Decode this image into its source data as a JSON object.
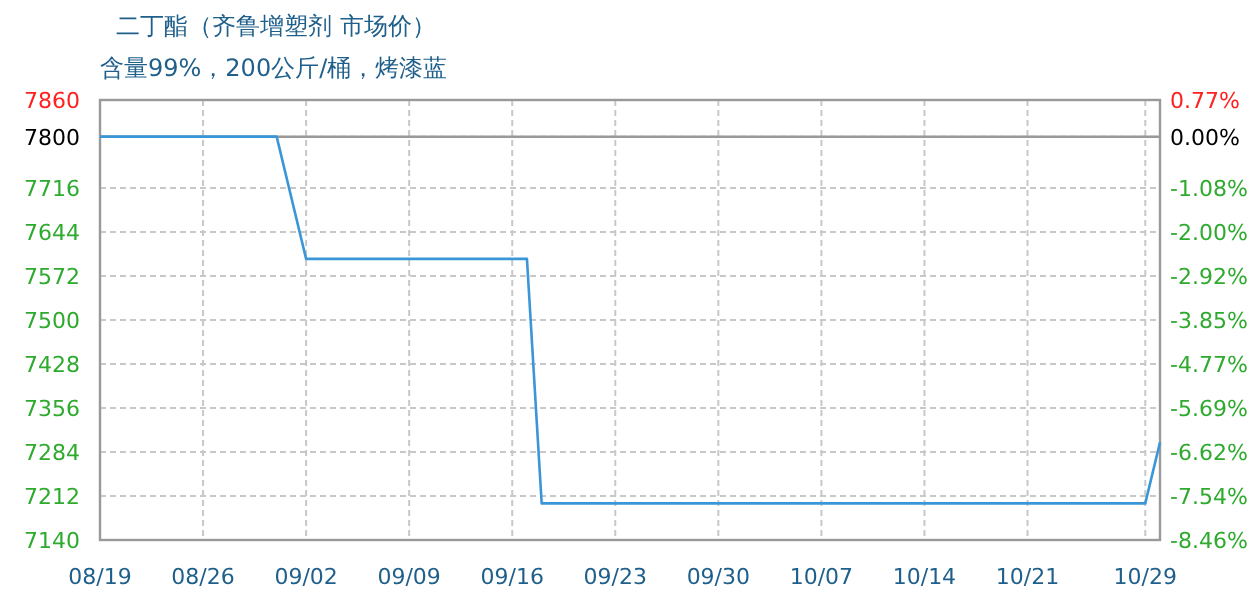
{
  "chart_data": {
    "type": "line",
    "title": "二丁酯（齐鲁增塑剂 市场价）",
    "subtitle": "含量99%，200公斤/桶，烤漆蓝",
    "x": [
      "--08-19",
      "--08-31",
      "--09-02",
      "--09-17",
      "--09-18",
      "--10-29",
      "--10-30"
    ],
    "series": [
      {
        "color": "#3a96d8",
        "values": [
          7800,
          7800,
          7600,
          7600,
          7200,
          7200,
          7300
        ]
      }
    ],
    "xlim": [
      "--08-19",
      "--10-30"
    ],
    "xticks": [
      {
        "value": "--08-19",
        "label": "08/19"
      },
      {
        "value": "--08-26",
        "label": "08/26"
      },
      {
        "value": "--09-02",
        "label": "09/02"
      },
      {
        "value": "--09-09",
        "label": "09/09"
      },
      {
        "value": "--09-16",
        "label": "09/16"
      },
      {
        "value": "--09-23",
        "label": "09/23"
      },
      {
        "value": "--09-30",
        "label": "09/30"
      },
      {
        "value": "--10-07",
        "label": "10/07"
      },
      {
        "value": "--10-14",
        "label": "10/14"
      },
      {
        "value": "--10-21",
        "label": "10/21"
      },
      {
        "value": "--10-29",
        "label": "10/29"
      }
    ],
    "ylim": [
      7140,
      7860
    ],
    "yticks": [
      7140,
      7212,
      7284,
      7356,
      7428,
      7500,
      7572,
      7644,
      7716,
      7800,
      7860
    ],
    "y2lim": [
      -8.46,
      0.77
    ],
    "y2ticks": [
      {
        "value": -8.46,
        "label": "-8.46%"
      },
      {
        "value": -7.54,
        "label": "-7.54%"
      },
      {
        "value": -6.62,
        "label": "-6.62%"
      },
      {
        "value": -5.69,
        "label": "-5.69%"
      },
      {
        "value": -4.77,
        "label": "-4.77%"
      },
      {
        "value": -3.85,
        "label": "-3.85%"
      },
      {
        "value": -2.92,
        "label": "-2.92%"
      },
      {
        "value": -2.0,
        "label": "-2.00%"
      },
      {
        "value": -1.08,
        "label": "-1.08%"
      },
      {
        "value": 0,
        "label": "0.00%"
      },
      {
        "value": 0.77,
        "label": "0.77%"
      }
    ],
    "ref_lines": [
      {
        "axis": "y2",
        "value": 0,
        "color": "#999999"
      }
    ],
    "grid": true,
    "marker": "none",
    "line_style": "solid"
  }
}
